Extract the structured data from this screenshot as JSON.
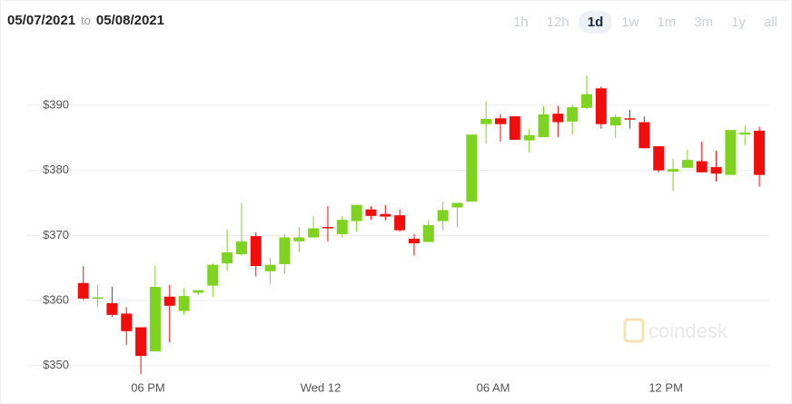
{
  "header": {
    "start_date": "05/07/2021",
    "connector": "to",
    "end_date": "05/08/2021"
  },
  "range_buttons": [
    "1h",
    "12h",
    "1d",
    "1w",
    "1m",
    "3m",
    "1y",
    "all"
  ],
  "selected_range": 2,
  "watermark": "coindesk",
  "chart_data": {
    "type": "candlestick",
    "x": [
      15.75,
      16.25,
      16.75,
      17.25,
      17.75,
      18.25,
      18.75,
      19.25,
      19.75,
      20.25,
      20.75,
      21.25,
      21.75,
      22.25,
      22.75,
      23.25,
      23.75,
      24.25,
      24.75,
      25.25,
      25.75,
      26.25,
      26.75,
      27.25,
      27.75,
      28.25,
      28.75,
      29.25,
      29.75,
      30.25,
      30.75,
      31.25,
      31.75,
      32.25,
      32.75,
      33.25,
      33.75,
      34.25,
      34.75,
      35.25,
      35.75,
      36.25,
      36.75,
      37.25,
      37.75,
      38.25,
      38.75,
      39.25
    ],
    "series": [
      {
        "open": [
          362.7,
          360.3,
          359.6,
          358,
          355.9,
          352.2,
          360.6,
          358.4,
          361.2,
          362.3,
          365.7,
          367.1,
          369.9,
          364.5,
          365.6,
          369.1,
          369.7,
          371.3,
          370.2,
          372.2,
          374,
          373.3,
          373.1,
          369.5,
          369,
          372.2,
          374.3,
          375.2,
          387.1,
          388,
          388.3,
          384.6,
          385.1,
          388.7,
          387.5,
          389.6,
          392.6,
          386.9,
          388,
          387.4,
          383.7,
          379.8,
          380.4,
          381.4,
          380.5,
          379.3,
          385.5,
          386.1
        ],
        "high": [
          365.3,
          362.4,
          362.1,
          359,
          355.9,
          365.3,
          362.4,
          361.9,
          361.6,
          365.7,
          370.9,
          375,
          370.5,
          366.6,
          370.2,
          371.3,
          373,
          374.5,
          373,
          374.7,
          374.5,
          374.7,
          374,
          370.2,
          372.4,
          375.2,
          375,
          385.5,
          390.6,
          388.6,
          388.3,
          386.4,
          389.9,
          389.9,
          390,
          394.6,
          392.9,
          388.6,
          389.3,
          388.3,
          383.7,
          381.8,
          383.2,
          384.4,
          383,
          386.2,
          386.9,
          386.7
        ],
        "low": [
          360.1,
          359,
          357.5,
          353.2,
          348.7,
          352.2,
          353.6,
          357.8,
          360.9,
          360.6,
          364.6,
          366.9,
          363.7,
          362.5,
          364.1,
          367.4,
          369.7,
          369.1,
          369.7,
          370.6,
          372.4,
          372.3,
          370.6,
          366.9,
          369,
          370.8,
          371.3,
          375.2,
          384.1,
          384.4,
          384.7,
          382.8,
          385.1,
          385.1,
          385.5,
          389.4,
          386.4,
          385,
          386.4,
          383.4,
          379.7,
          376.8,
          380.4,
          379.7,
          378.3,
          379.3,
          383.9,
          377.5
        ],
        "close": [
          360.3,
          360.5,
          357.8,
          355.3,
          351.5,
          362.1,
          359.2,
          360.7,
          361.6,
          365.5,
          367.4,
          369.1,
          365.3,
          365.5,
          369.7,
          369.7,
          371.1,
          371.1,
          372.4,
          374.7,
          373,
          372.9,
          370.8,
          368.8,
          371.6,
          373.9,
          375,
          385.5,
          387.9,
          387.1,
          384.7,
          385.4,
          388.6,
          387.4,
          389.7,
          391.7,
          387.1,
          388.2,
          387.8,
          383.4,
          380,
          380.2,
          381.6,
          379.7,
          379.5,
          386.2,
          385.8,
          379.3
        ],
        "up_color": "#7ed321",
        "down_color": "#f20d0d"
      }
    ],
    "xlim": [
      15.38,
      39.69
    ],
    "xticks": [
      {
        "value": 18,
        "label": "06 PM"
      },
      {
        "value": 24,
        "label": "Wed 12"
      },
      {
        "value": 30,
        "label": "06 AM"
      },
      {
        "value": 36,
        "label": "12 PM"
      }
    ],
    "ylim": [
      347.6,
      397.8
    ],
    "yticks": [
      {
        "value": 350,
        "label": "$350"
      },
      {
        "value": 360,
        "label": "$360"
      },
      {
        "value": 370,
        "label": "$370"
      },
      {
        "value": 380,
        "label": "$380"
      },
      {
        "value": 390,
        "label": "$390"
      }
    ],
    "grid": true
  }
}
